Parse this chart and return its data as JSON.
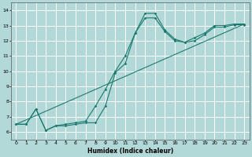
{
  "xlabel": "Humidex (Indice chaleur)",
  "xlim": [
    -0.5,
    23.5
  ],
  "ylim": [
    5.5,
    14.5
  ],
  "xticks": [
    0,
    1,
    2,
    3,
    4,
    5,
    6,
    7,
    8,
    9,
    10,
    11,
    12,
    13,
    14,
    15,
    16,
    17,
    18,
    19,
    20,
    21,
    22,
    23
  ],
  "yticks": [
    6,
    7,
    8,
    9,
    10,
    11,
    12,
    13,
    14
  ],
  "bg_color": "#b2d8d8",
  "grid_color": "#ffffff",
  "line_color": "#1a7a6e",
  "hours": [
    0,
    1,
    2,
    3,
    4,
    5,
    6,
    7,
    8,
    9,
    10,
    11,
    12,
    13,
    14,
    15,
    16,
    17,
    18,
    19,
    20,
    21,
    22,
    23
  ],
  "curve_upper": [
    6.5,
    6.5,
    7.5,
    6.1,
    6.4,
    6.5,
    6.6,
    6.7,
    7.7,
    8.8,
    10.0,
    11.0,
    12.5,
    13.8,
    13.8,
    12.7,
    12.1,
    11.9,
    12.2,
    12.5,
    13.0,
    13.0,
    13.1,
    13.1
  ],
  "curve_lower": [
    6.5,
    6.5,
    7.5,
    6.1,
    6.4,
    6.4,
    6.5,
    6.6,
    6.6,
    7.7,
    9.9,
    10.5,
    12.5,
    13.5,
    13.5,
    12.6,
    12.0,
    11.9,
    12.0,
    12.4,
    12.9,
    12.9,
    13.05,
    13.05
  ],
  "diag_start_x": 0,
  "diag_start_y": 6.5,
  "diag_end_x": 23,
  "diag_end_y": 13.1
}
